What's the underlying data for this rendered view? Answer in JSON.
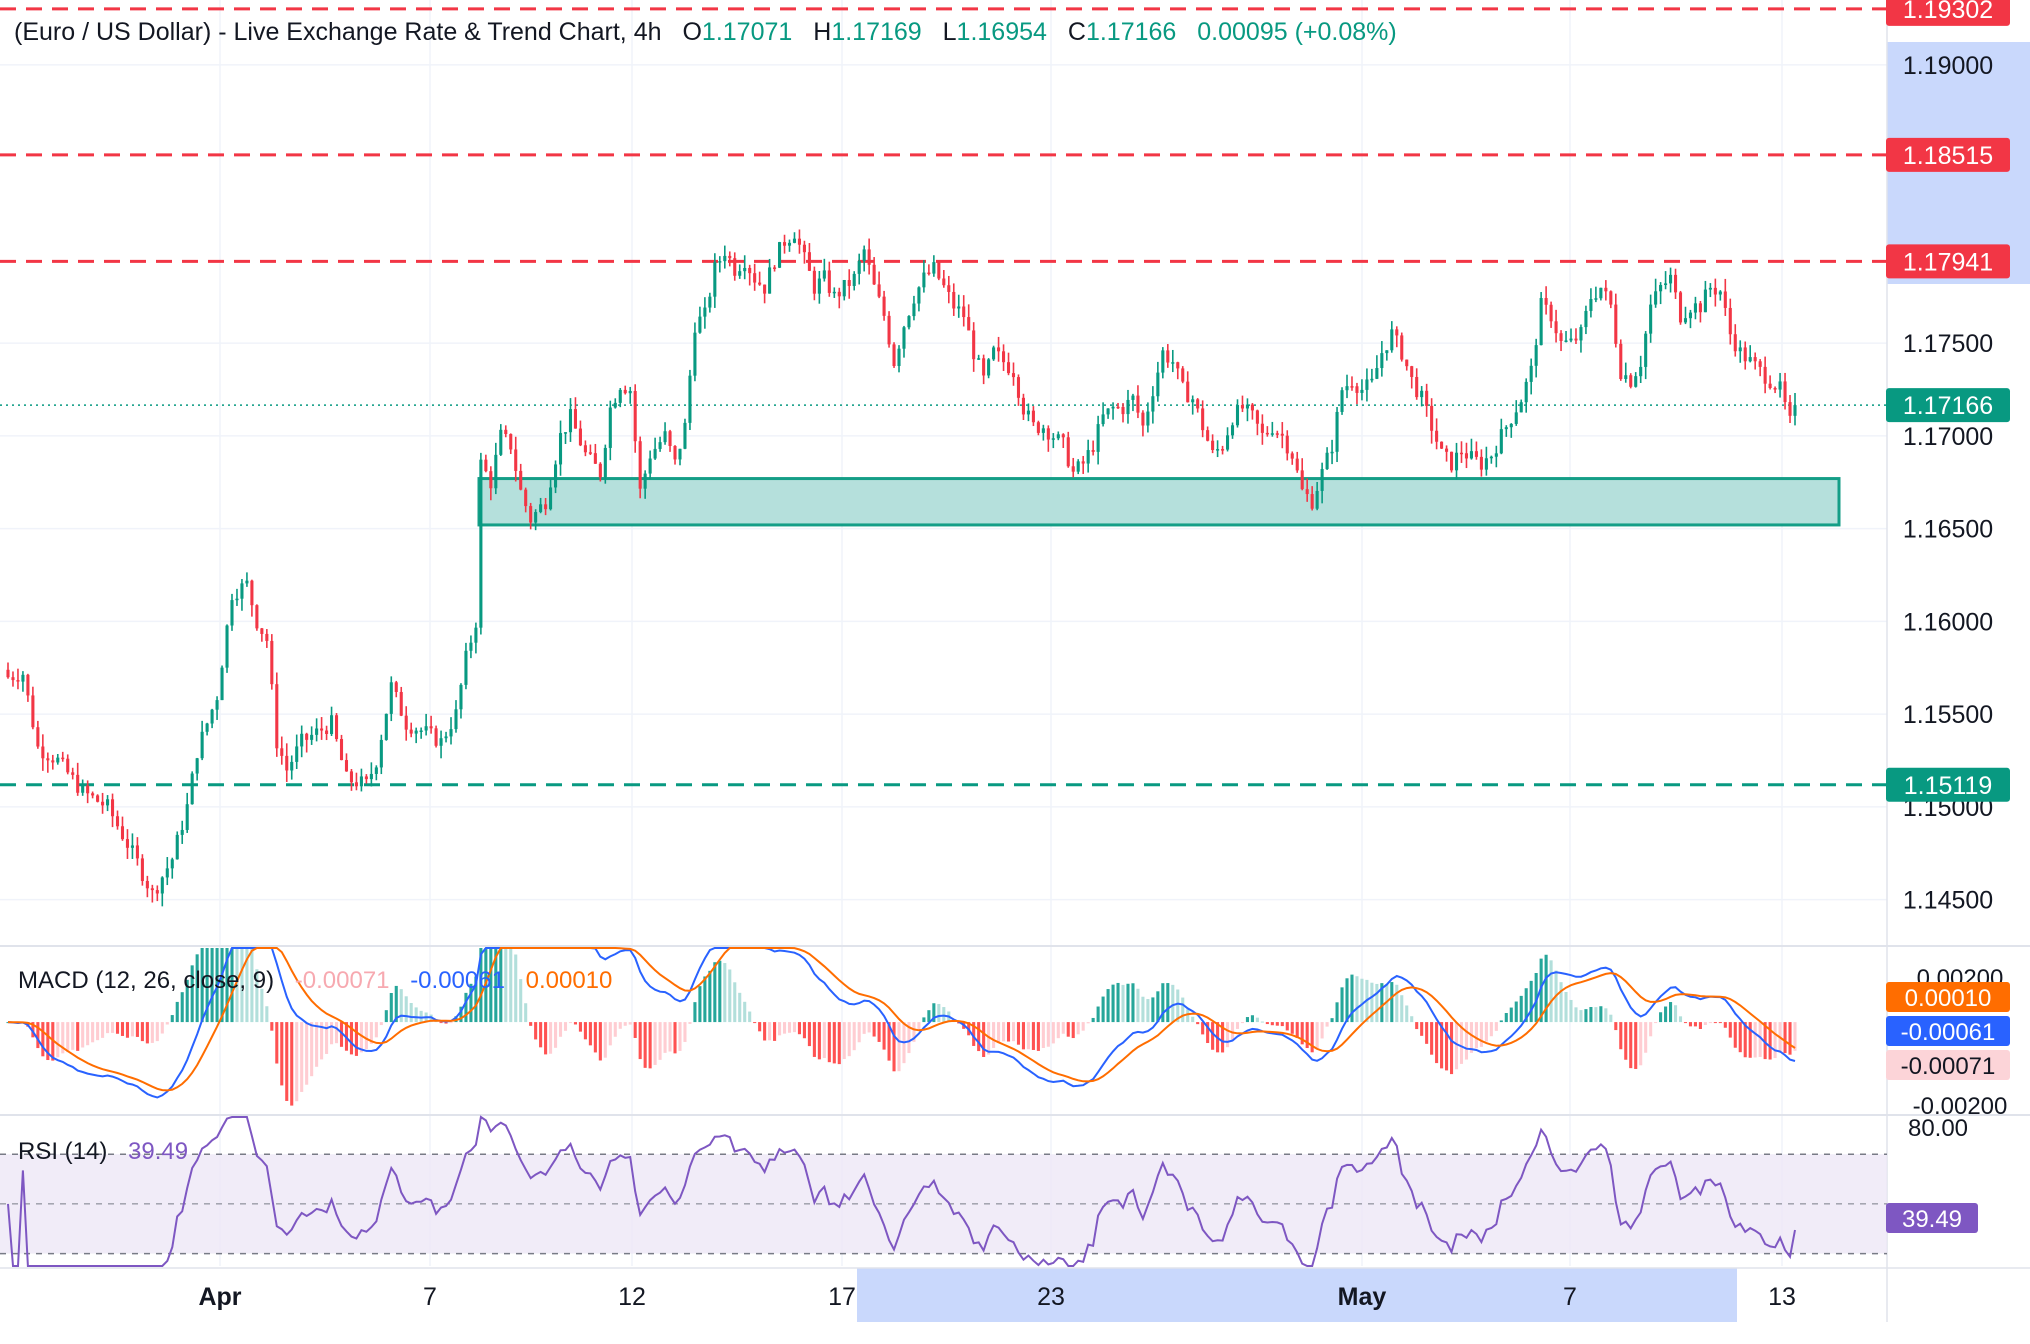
{
  "header": {
    "title": "(Euro / US Dollar) - Live Exchange Rate & Trend Chart, 4h",
    "o_label": "O",
    "o_value": "1.17071",
    "h_label": "H",
    "h_value": "1.17169",
    "l_label": "L",
    "l_value": "1.16954",
    "c_label": "C",
    "c_value": "1.17166",
    "change": "0.00095 (+0.08%)"
  },
  "colors": {
    "up": "#089981",
    "down": "#f23645",
    "macd_line": "#2962ff",
    "signal_line": "#ff6d00",
    "rsi_line": "#7e57c2",
    "zone_fill": "#b2dfdb",
    "zone_stroke": "#089981"
  },
  "chart_data": [
    {
      "type": "candlestick",
      "price_axis": {
        "min": 1.1425,
        "max": 1.1935,
        "ticks": [
          "1.14500",
          "1.15000",
          "1.15500",
          "1.16000",
          "1.16500",
          "1.17000",
          "1.17500",
          "1.19000"
        ]
      },
      "time_axis": {
        "labels": [
          "Apr",
          "7",
          "12",
          "17",
          "23",
          "May",
          "7",
          "13"
        ]
      },
      "levels": [
        {
          "price": 1.19302,
          "label": "1.19302",
          "style": "dashed",
          "color": "#f23645"
        },
        {
          "price": 1.18515,
          "label": "1.18515",
          "style": "dashed",
          "color": "#f23645"
        },
        {
          "price": 1.17941,
          "label": "1.17941",
          "style": "dashed",
          "color": "#f23645"
        },
        {
          "price": 1.15119,
          "label": "1.15119",
          "style": "dashed",
          "color": "#089981"
        },
        {
          "price": 1.17166,
          "label": "1.17166",
          "style": "dotted",
          "color": "#089981"
        }
      ],
      "support_zone": {
        "low": 1.1652,
        "high": 1.1677
      },
      "series": [
        {
          "t": 0,
          "close": 1.157
        },
        {
          "t": 3,
          "close": 1.1572
        },
        {
          "t": 6,
          "close": 1.1532
        },
        {
          "t": 10,
          "close": 1.1525
        },
        {
          "t": 15,
          "close": 1.1508
        },
        {
          "t": 20,
          "close": 1.15
        },
        {
          "t": 26,
          "close": 1.147
        },
        {
          "t": 29,
          "close": 1.1453
        },
        {
          "t": 33,
          "close": 1.1472
        },
        {
          "t": 36,
          "close": 1.15
        },
        {
          "t": 38,
          "close": 1.153
        },
        {
          "t": 42,
          "close": 1.156
        },
        {
          "t": 45,
          "close": 1.1615
        },
        {
          "t": 48,
          "close": 1.162
        },
        {
          "t": 50,
          "close": 1.16
        },
        {
          "t": 52,
          "close": 1.159
        },
        {
          "t": 54,
          "close": 1.1535
        },
        {
          "t": 56,
          "close": 1.152
        },
        {
          "t": 59,
          "close": 1.1535
        },
        {
          "t": 62,
          "close": 1.154
        },
        {
          "t": 65,
          "close": 1.1545
        },
        {
          "t": 68,
          "close": 1.1515
        },
        {
          "t": 72,
          "close": 1.1512
        },
        {
          "t": 74,
          "close": 1.1525
        },
        {
          "t": 77,
          "close": 1.1565
        },
        {
          "t": 80,
          "close": 1.1545
        },
        {
          "t": 84,
          "close": 1.154
        },
        {
          "t": 87,
          "close": 1.1535
        },
        {
          "t": 90,
          "close": 1.155
        },
        {
          "t": 92,
          "close": 1.158
        },
        {
          "t": 94,
          "close": 1.16
        },
        {
          "t": 95,
          "close": 1.1685
        },
        {
          "t": 97,
          "close": 1.1675
        },
        {
          "t": 99,
          "close": 1.17
        },
        {
          "t": 101,
          "close": 1.1695
        },
        {
          "t": 103,
          "close": 1.167
        },
        {
          "t": 105,
          "close": 1.1655
        },
        {
          "t": 108,
          "close": 1.1665
        },
        {
          "t": 111,
          "close": 1.17
        },
        {
          "t": 113,
          "close": 1.171
        },
        {
          "t": 116,
          "close": 1.169
        },
        {
          "t": 119,
          "close": 1.168
        },
        {
          "t": 121,
          "close": 1.1715
        },
        {
          "t": 123,
          "close": 1.1728
        },
        {
          "t": 125,
          "close": 1.1725
        },
        {
          "t": 127,
          "close": 1.167
        },
        {
          "t": 129,
          "close": 1.169
        },
        {
          "t": 132,
          "close": 1.17
        },
        {
          "t": 134,
          "close": 1.1685
        },
        {
          "t": 136,
          "close": 1.1705
        },
        {
          "t": 138,
          "close": 1.176
        },
        {
          "t": 140,
          "close": 1.1765
        },
        {
          "t": 142,
          "close": 1.179
        },
        {
          "t": 144,
          "close": 1.18
        },
        {
          "t": 146,
          "close": 1.179
        },
        {
          "t": 148,
          "close": 1.1795
        },
        {
          "t": 150,
          "close": 1.1785
        },
        {
          "t": 152,
          "close": 1.178
        },
        {
          "t": 154,
          "close": 1.1795
        },
        {
          "t": 156,
          "close": 1.1805
        },
        {
          "t": 158,
          "close": 1.181
        },
        {
          "t": 160,
          "close": 1.1795
        },
        {
          "t": 162,
          "close": 1.178
        },
        {
          "t": 164,
          "close": 1.1785
        },
        {
          "t": 166,
          "close": 1.1775
        },
        {
          "t": 168,
          "close": 1.178
        },
        {
          "t": 170,
          "close": 1.1785
        },
        {
          "t": 172,
          "close": 1.18
        },
        {
          "t": 174,
          "close": 1.178
        },
        {
          "t": 176,
          "close": 1.1765
        },
        {
          "t": 178,
          "close": 1.174
        },
        {
          "t": 180,
          "close": 1.176
        },
        {
          "t": 182,
          "close": 1.1775
        },
        {
          "t": 184,
          "close": 1.1785
        },
        {
          "t": 186,
          "close": 1.179
        },
        {
          "t": 188,
          "close": 1.178
        },
        {
          "t": 190,
          "close": 1.177
        },
        {
          "t": 192,
          "close": 1.1765
        },
        {
          "t": 194,
          "close": 1.1745
        },
        {
          "t": 196,
          "close": 1.173
        },
        {
          "t": 198,
          "close": 1.1745
        },
        {
          "t": 200,
          "close": 1.174
        },
        {
          "t": 202,
          "close": 1.1735
        },
        {
          "t": 204,
          "close": 1.1715
        },
        {
          "t": 206,
          "close": 1.1705
        },
        {
          "t": 208,
          "close": 1.1705
        },
        {
          "t": 210,
          "close": 1.17
        },
        {
          "t": 212,
          "close": 1.1695
        },
        {
          "t": 214,
          "close": 1.168
        },
        {
          "t": 216,
          "close": 1.1685
        },
        {
          "t": 218,
          "close": 1.1695
        },
        {
          "t": 220,
          "close": 1.171
        },
        {
          "t": 222,
          "close": 1.1715
        },
        {
          "t": 224,
          "close": 1.1715
        },
        {
          "t": 226,
          "close": 1.172
        },
        {
          "t": 228,
          "close": 1.1705
        },
        {
          "t": 230,
          "close": 1.1725
        },
        {
          "t": 232,
          "close": 1.1745
        },
        {
          "t": 234,
          "close": 1.174
        },
        {
          "t": 236,
          "close": 1.1725
        },
        {
          "t": 238,
          "close": 1.172
        },
        {
          "t": 240,
          "close": 1.1705
        },
        {
          "t": 242,
          "close": 1.169
        },
        {
          "t": 244,
          "close": 1.1695
        },
        {
          "t": 246,
          "close": 1.171
        },
        {
          "t": 248,
          "close": 1.1715
        },
        {
          "t": 250,
          "close": 1.171
        },
        {
          "t": 252,
          "close": 1.17
        },
        {
          "t": 254,
          "close": 1.1705
        },
        {
          "t": 256,
          "close": 1.17
        },
        {
          "t": 258,
          "close": 1.169
        },
        {
          "t": 260,
          "close": 1.167
        },
        {
          "t": 262,
          "close": 1.1665
        },
        {
          "t": 264,
          "close": 1.168
        },
        {
          "t": 266,
          "close": 1.1695
        },
        {
          "t": 268,
          "close": 1.1725
        },
        {
          "t": 270,
          "close": 1.173
        },
        {
          "t": 272,
          "close": 1.1725
        },
        {
          "t": 274,
          "close": 1.1728
        },
        {
          "t": 276,
          "close": 1.1745
        },
        {
          "t": 278,
          "close": 1.1755
        },
        {
          "t": 280,
          "close": 1.1745
        },
        {
          "t": 282,
          "close": 1.173
        },
        {
          "t": 284,
          "close": 1.172
        },
        {
          "t": 286,
          "close": 1.1705
        },
        {
          "t": 288,
          "close": 1.169
        },
        {
          "t": 290,
          "close": 1.1685
        },
        {
          "t": 292,
          "close": 1.1692
        },
        {
          "t": 294,
          "close": 1.1688
        },
        {
          "t": 296,
          "close": 1.1685
        },
        {
          "t": 298,
          "close": 1.169
        },
        {
          "t": 300,
          "close": 1.17
        },
        {
          "t": 302,
          "close": 1.171
        },
        {
          "t": 304,
          "close": 1.172
        },
        {
          "t": 306,
          "close": 1.1735
        },
        {
          "t": 308,
          "close": 1.177
        },
        {
          "t": 310,
          "close": 1.1765
        },
        {
          "t": 312,
          "close": 1.175
        },
        {
          "t": 314,
          "close": 1.175
        },
        {
          "t": 316,
          "close": 1.1755
        },
        {
          "t": 318,
          "close": 1.1775
        },
        {
          "t": 320,
          "close": 1.178
        },
        {
          "t": 322,
          "close": 1.177
        },
        {
          "t": 324,
          "close": 1.1735
        },
        {
          "t": 326,
          "close": 1.173
        },
        {
          "t": 328,
          "close": 1.174
        },
        {
          "t": 330,
          "close": 1.177
        },
        {
          "t": 332,
          "close": 1.178
        },
        {
          "t": 334,
          "close": 1.1785
        },
        {
          "t": 336,
          "close": 1.1765
        },
        {
          "t": 338,
          "close": 1.177
        },
        {
          "t": 340,
          "close": 1.177
        },
        {
          "t": 342,
          "close": 1.178
        },
        {
          "t": 344,
          "close": 1.1778
        },
        {
          "t": 346,
          "close": 1.1755
        },
        {
          "t": 348,
          "close": 1.1745
        },
        {
          "t": 350,
          "close": 1.174
        },
        {
          "t": 352,
          "close": 1.1735
        },
        {
          "t": 354,
          "close": 1.173
        },
        {
          "t": 356,
          "close": 1.1725
        },
        {
          "t": 358,
          "close": 1.1707
        },
        {
          "t": 359,
          "close": 1.17166
        }
      ],
      "t_max": 372
    },
    {
      "type": "line",
      "title": "MACD (12, 26, close, 9)",
      "values": {
        "histogram": "-0.00071",
        "macd": "-0.00061",
        "signal": "0.00010"
      },
      "axis_labels": [
        "0.00200",
        "-0.00200"
      ],
      "range": [
        -0.0027,
        0.0022
      ]
    },
    {
      "type": "line",
      "title": "RSI (14)",
      "value": "39.49",
      "axis_labels": [
        "80.00"
      ],
      "band": [
        30,
        70
      ],
      "range": [
        25,
        85
      ]
    }
  ]
}
